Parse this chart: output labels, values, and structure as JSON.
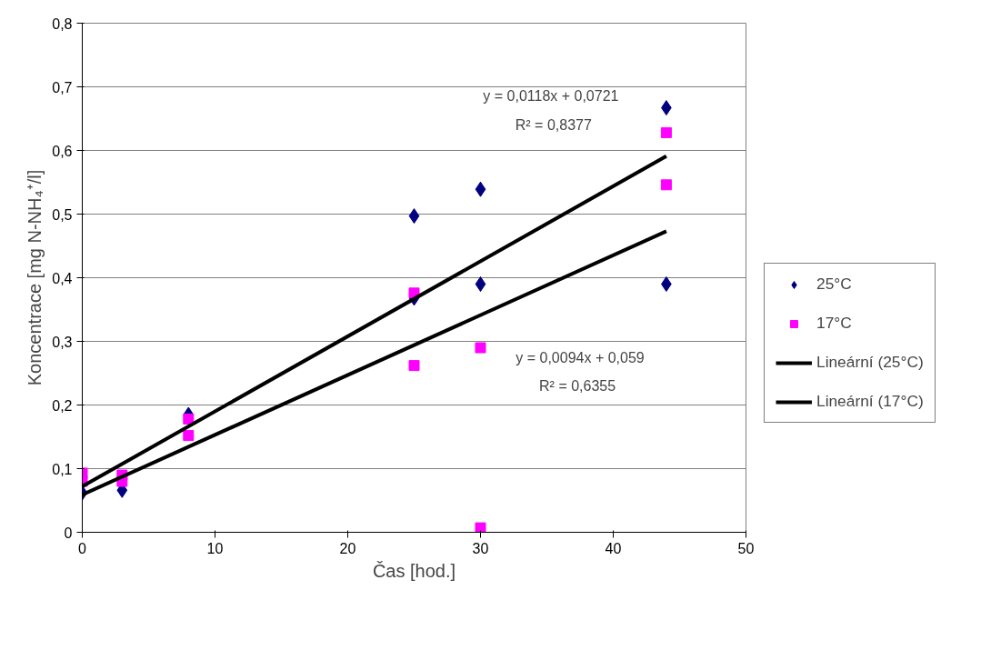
{
  "chart_data": {
    "type": "scatter",
    "xlabel": "Čas [hod.]",
    "ylabel": "Koncentrace [mg N-NH₄⁺/l]",
    "xlim": [
      0,
      50
    ],
    "xticks": [
      0,
      10,
      20,
      30,
      40,
      50
    ],
    "ylim": [
      0,
      0.8
    ],
    "yticks": [
      {
        "value": 0,
        "label": "0"
      },
      {
        "value": 0.1,
        "label": "0,1"
      },
      {
        "value": 0.2,
        "label": "0,2"
      },
      {
        "value": 0.3,
        "label": "0,3"
      },
      {
        "value": 0.4,
        "label": "0,4"
      },
      {
        "value": 0.5,
        "label": "0,5"
      },
      {
        "value": 0.6,
        "label": "0,6"
      },
      {
        "value": 0.7,
        "label": "0,7"
      },
      {
        "value": 0.8,
        "label": "0,8"
      }
    ],
    "grid": "y",
    "legend": "right",
    "series": [
      {
        "name": "25°C",
        "color": "#000080",
        "marker": "diamond",
        "x": [
          0,
          3,
          8,
          25,
          25,
          30,
          30,
          44,
          44
        ],
        "values": [
          0.062,
          0.066,
          0.185,
          0.497,
          0.368,
          0.539,
          0.39,
          0.667,
          0.39
        ]
      },
      {
        "name": "17°C",
        "color": "#ff00ff",
        "marker": "square",
        "x": [
          0,
          0,
          3,
          3,
          8,
          8,
          25,
          25,
          30,
          30,
          44,
          44
        ],
        "values": [
          0.093,
          0.08,
          0.09,
          0.08,
          0.178,
          0.152,
          0.376,
          0.262,
          0.29,
          0.007,
          0.628,
          0.546
        ]
      },
      {
        "name": "Lineární (25°C)",
        "type": "line",
        "color": "#000000",
        "x": [
          0,
          44
        ],
        "values": [
          0.072,
          0.591
        ]
      },
      {
        "name": "Lineární (17°C)",
        "type": "line",
        "color": "#000000",
        "x": [
          0,
          44
        ],
        "values": [
          0.059,
          0.473
        ]
      }
    ],
    "annotations": [
      "y = 0,0118x + 0,0721",
      "R² = 0,8377",
      "y = 0,0094x + 0,059",
      "R² = 0,6355"
    ]
  }
}
